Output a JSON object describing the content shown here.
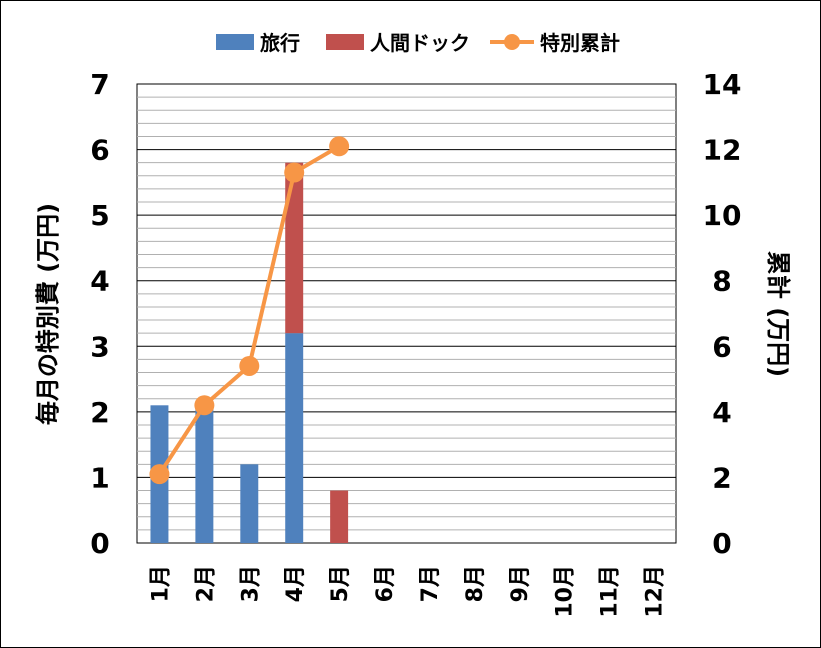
{
  "chart_data": {
    "type": "bar",
    "stacked": true,
    "categories": [
      "1月",
      "2月",
      "3月",
      "4月",
      "5月",
      "6月",
      "7月",
      "8月",
      "9月",
      "10月",
      "11月",
      "12月"
    ],
    "series": [
      {
        "name": "旅行",
        "type": "bar",
        "axis": "left",
        "color": "#4f81bd",
        "values": [
          2.1,
          2.1,
          1.2,
          3.2,
          0,
          0,
          0,
          0,
          0,
          0,
          0,
          0
        ]
      },
      {
        "name": "人間ドック",
        "type": "bar",
        "axis": "left",
        "color": "#c0504d",
        "values": [
          0,
          0,
          0,
          2.6,
          0.8,
          0,
          0,
          0,
          0,
          0,
          0,
          0
        ]
      },
      {
        "name": "特別累計",
        "type": "line",
        "axis": "right",
        "color": "#f79646",
        "values": [
          2.1,
          4.2,
          5.4,
          11.3,
          12.1,
          null,
          null,
          null,
          null,
          null,
          null,
          null
        ]
      }
    ],
    "ylabel": "毎月の特別費 (万円)",
    "y2label": "累計 (万円)",
    "ylim": [
      0,
      7
    ],
    "y2lim": [
      0,
      14
    ],
    "yticks": [
      "0",
      "1",
      "2",
      "3",
      "4",
      "5",
      "6",
      "7"
    ],
    "y2ticks": [
      "0",
      "2",
      "4",
      "6",
      "8",
      "10",
      "12",
      "14"
    ],
    "grid": true,
    "legend_position": "top"
  }
}
